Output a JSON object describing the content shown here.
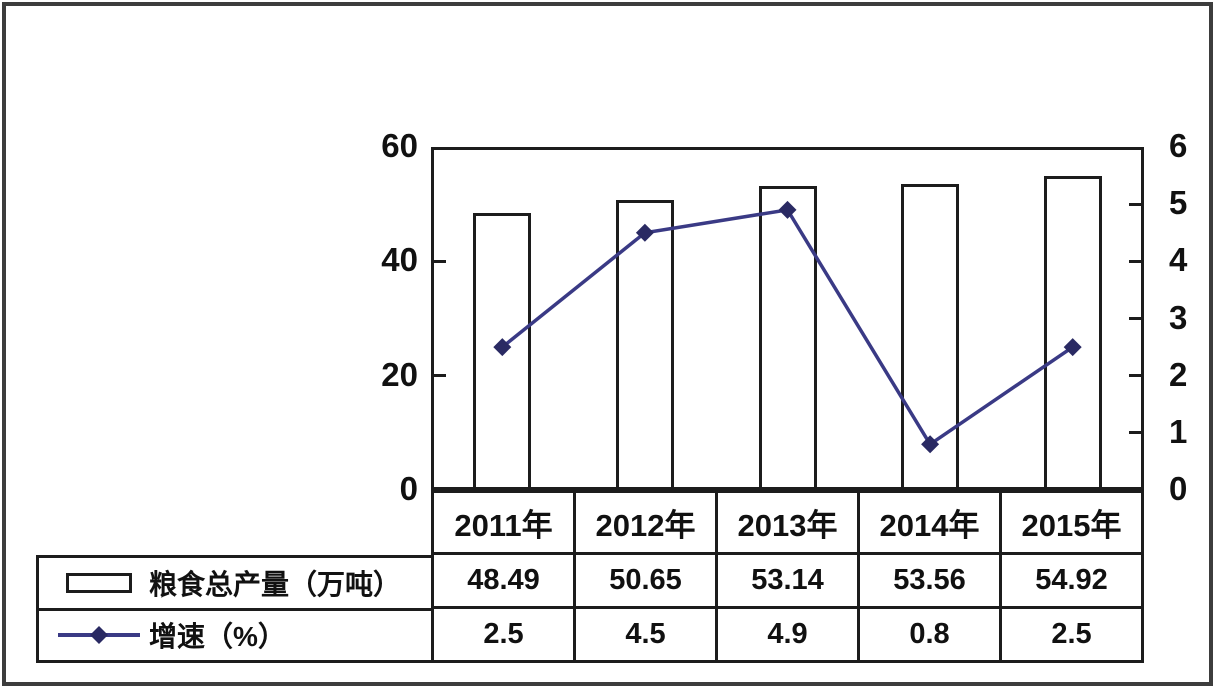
{
  "chart_data": {
    "type": "combo-bar-line",
    "categories": [
      "2011年",
      "2012年",
      "2013年",
      "2014年",
      "2015年"
    ],
    "series": [
      {
        "name": "粮食总产量（万吨）",
        "type": "bar",
        "axis": "left",
        "values": [
          48.49,
          50.65,
          53.14,
          53.56,
          54.92
        ]
      },
      {
        "name": "增速（%）",
        "type": "line",
        "axis": "right",
        "values": [
          2.5,
          4.5,
          4.9,
          0.8,
          2.5
        ]
      }
    ],
    "left_axis": {
      "ticks": [
        60,
        40,
        20,
        0
      ],
      "range": [
        0,
        60
      ]
    },
    "right_axis": {
      "ticks": [
        6,
        5,
        4,
        3,
        2,
        1,
        0
      ],
      "range": [
        0,
        6
      ]
    },
    "grid": false,
    "legend_position": "bottom-left-table",
    "title": "",
    "xlabel": "",
    "ylabel": ""
  },
  "table": {
    "header_row": [
      "2011年",
      "2012年",
      "2013年",
      "2014年",
      "2015年"
    ],
    "rows": [
      {
        "label": "粮食总产量（万吨）",
        "values": [
          "48.49",
          "50.65",
          "53.14",
          "53.56",
          "54.92"
        ]
      },
      {
        "label": "增速（%）",
        "values": [
          "2.5",
          "4.5",
          "4.9",
          "0.8",
          "2.5"
        ]
      }
    ]
  },
  "colors": {
    "line_series": "#3a3a85",
    "marker": "#2a2a63",
    "bar_fill": "#ffffff",
    "bar_border": "#1c1c1c",
    "axis_line": "#1c1c1c",
    "text": "#111111",
    "frame": "#3d3d3d"
  }
}
